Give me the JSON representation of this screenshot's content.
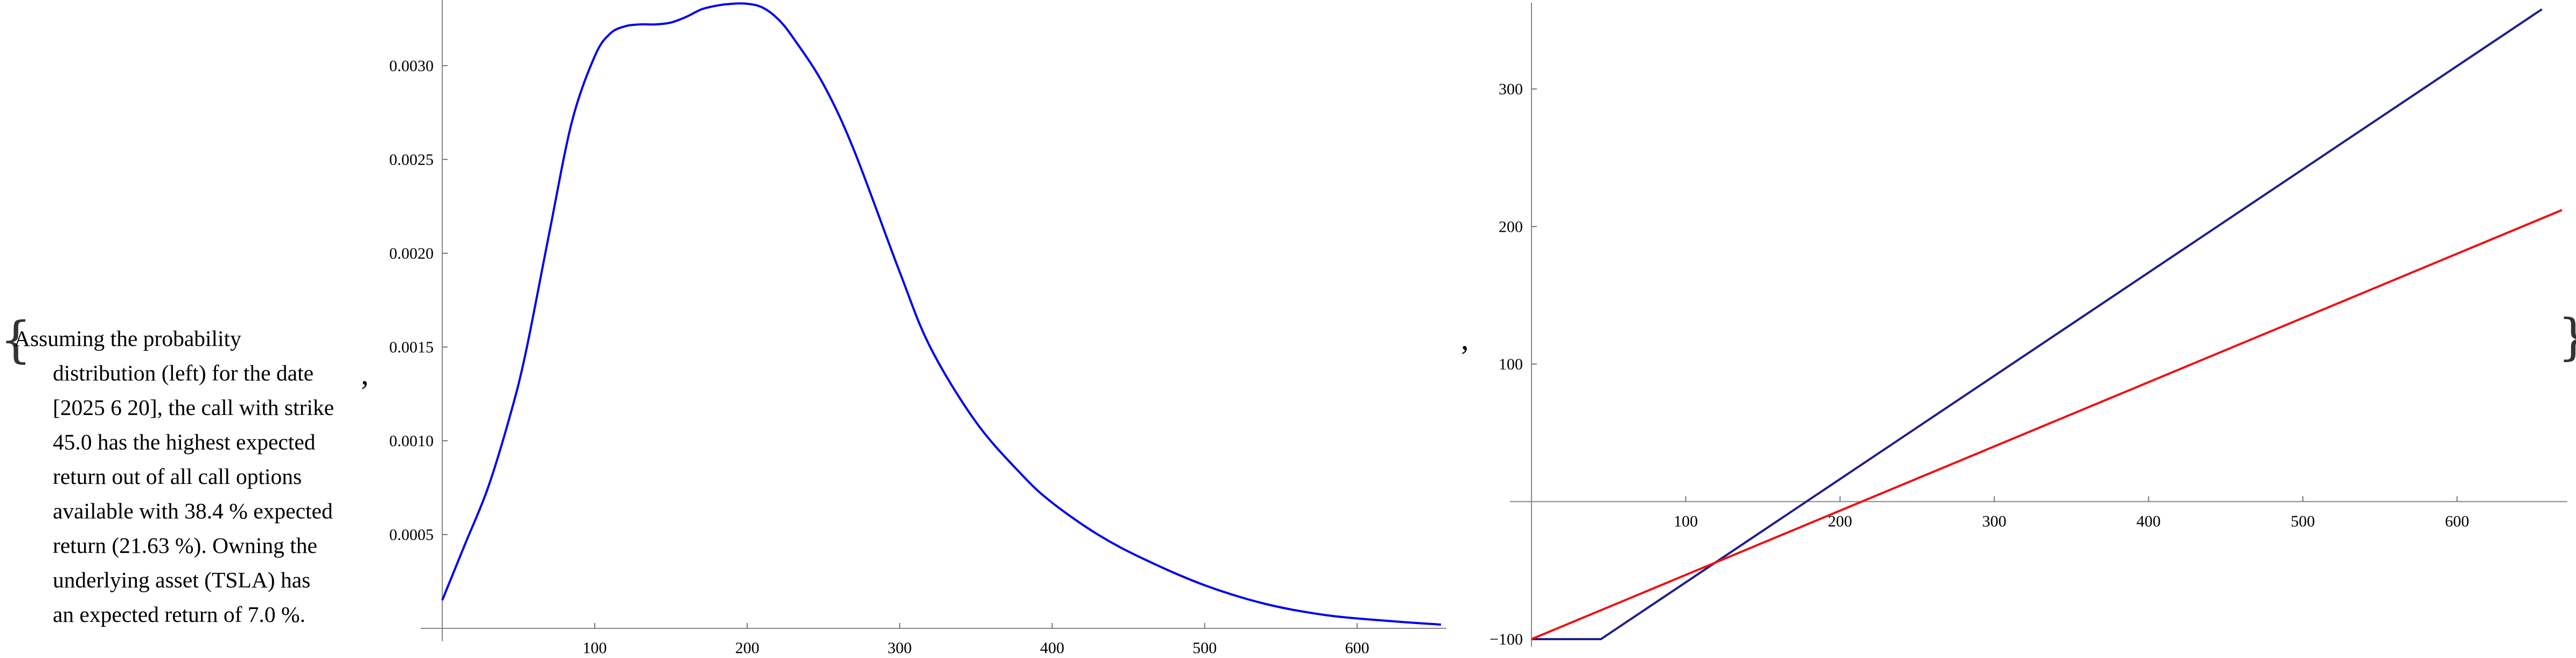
{
  "summary": {
    "lines": [
      "Assuming the probability",
      "distribution (left) for the date",
      "[2025 6 20], the call with strike",
      "45.0 has the highest expected",
      "return out of all call options",
      "available with 38.4 % expected",
      "return (21.63 %). Owning the",
      "underlying asset (TSLA) has",
      "an expected return of 7.0 %."
    ]
  },
  "punctuation": {
    "open_brace": "{",
    "close_brace": "}",
    "separator": ","
  },
  "chart_data": [
    {
      "type": "line",
      "title": "",
      "xlabel": "",
      "ylabel": "",
      "xlim": [
        0,
        655
      ],
      "ylim": [
        0,
        0.00335
      ],
      "x_ticks": [
        100,
        200,
        300,
        400,
        500,
        600
      ],
      "y_ticks": [
        0.0005,
        0.001,
        0.0015,
        0.002,
        0.0025,
        0.003
      ],
      "y_tick_labels": [
        "0.0005",
        "0.0010",
        "0.0015",
        "0.0020",
        "0.0025",
        "0.0030"
      ],
      "grid": false,
      "legend": "none",
      "series": [
        {
          "color": "#0000ee",
          "x": [
            0,
            15,
            30,
            45,
            55,
            70,
            85,
            100,
            110,
            120,
            130,
            140,
            150,
            160,
            170,
            180,
            190,
            200,
            210,
            220,
            230,
            250,
            270,
            300,
            320,
            350,
            380,
            400,
            430,
            460,
            500,
            540,
            580,
            620,
            655
          ],
          "y": [
            0.00015,
            0.00045,
            0.00075,
            0.00115,
            0.00148,
            0.0021,
            0.0027,
            0.00305,
            0.00317,
            0.00321,
            0.00322,
            0.00322,
            0.00323,
            0.00326,
            0.0033,
            0.00332,
            0.00333,
            0.00333,
            0.00331,
            0.00325,
            0.00315,
            0.0029,
            0.00255,
            0.0019,
            0.0015,
            0.0011,
            0.00082,
            0.00067,
            0.0005,
            0.00037,
            0.00023,
            0.00013,
            7e-05,
            4e-05,
            2e-05
          ]
        }
      ]
    },
    {
      "type": "line",
      "title": "",
      "xlabel": "",
      "ylabel": "",
      "xlim": [
        0,
        668
      ],
      "ylim": [
        -100,
        360
      ],
      "x_ticks": [
        100,
        200,
        300,
        400,
        500,
        600
      ],
      "y_ticks": [
        -100,
        100,
        200,
        300
      ],
      "grid": false,
      "legend": "none",
      "series": [
        {
          "color": "#1f1f8a",
          "x": [
            0,
            45,
            655
          ],
          "y": [
            -100,
            -100,
            358
          ]
        },
        {
          "color": "#ee1111",
          "x": [
            0,
            668
          ],
          "y": [
            -100,
            212
          ]
        }
      ]
    }
  ]
}
